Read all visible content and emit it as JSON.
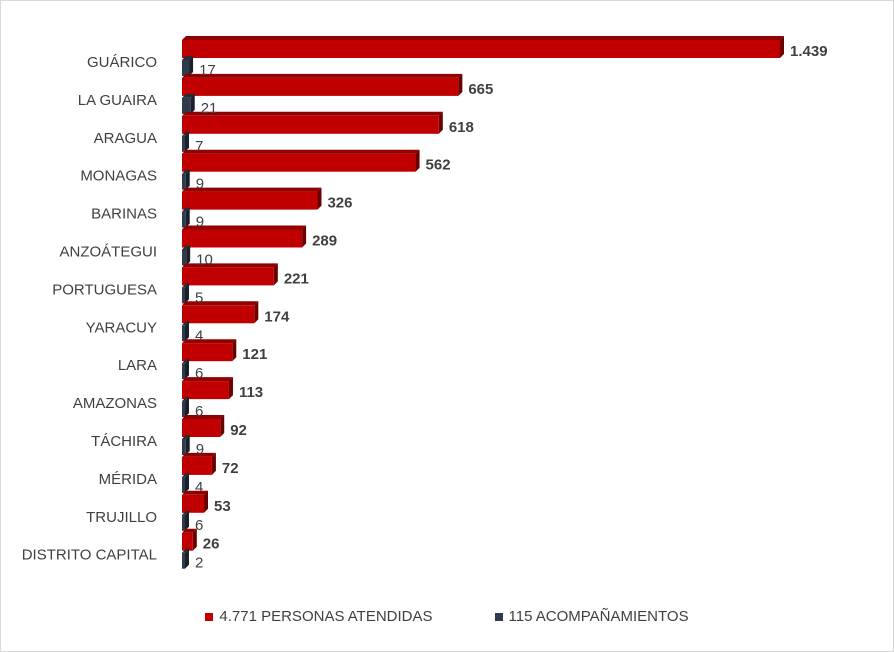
{
  "chart_data": {
    "type": "bar",
    "orientation": "horizontal",
    "categories": [
      "GUÁRICO",
      "LA GUAIRA",
      "ARAGUA",
      "MONAGAS",
      "BARINAS",
      "ANZOÁTEGUI",
      "PORTUGUESA",
      "YARACUY",
      "LARA",
      "AMAZONAS",
      "TÁCHIRA",
      "MÉRIDA",
      "TRUJILLO",
      "DISTRITO CAPITAL"
    ],
    "series": [
      {
        "name": "4.771 PERSONAS ATENDIDAS",
        "color": "#c00000",
        "values": [
          1439,
          665,
          618,
          562,
          326,
          289,
          221,
          174,
          121,
          113,
          92,
          72,
          53,
          26
        ],
        "labels": [
          "1.439",
          "665",
          "618",
          "562",
          "326",
          "289",
          "221",
          "174",
          "121",
          "113",
          "92",
          "72",
          "53",
          "26"
        ]
      },
      {
        "name": "115 ACOMPAÑAMIENTOS",
        "color": "#2f3b4c",
        "values": [
          17,
          21,
          7,
          9,
          9,
          10,
          5,
          4,
          6,
          6,
          9,
          4,
          6,
          2
        ],
        "labels": [
          "17",
          "21",
          "7",
          "9",
          "9",
          "10",
          "5",
          "4",
          "6",
          "6",
          "9",
          "4",
          "6",
          "2"
        ]
      }
    ],
    "xlim": [
      0,
      1439
    ],
    "grid": false,
    "legend_position": "bottom",
    "bar_style": "3d"
  }
}
